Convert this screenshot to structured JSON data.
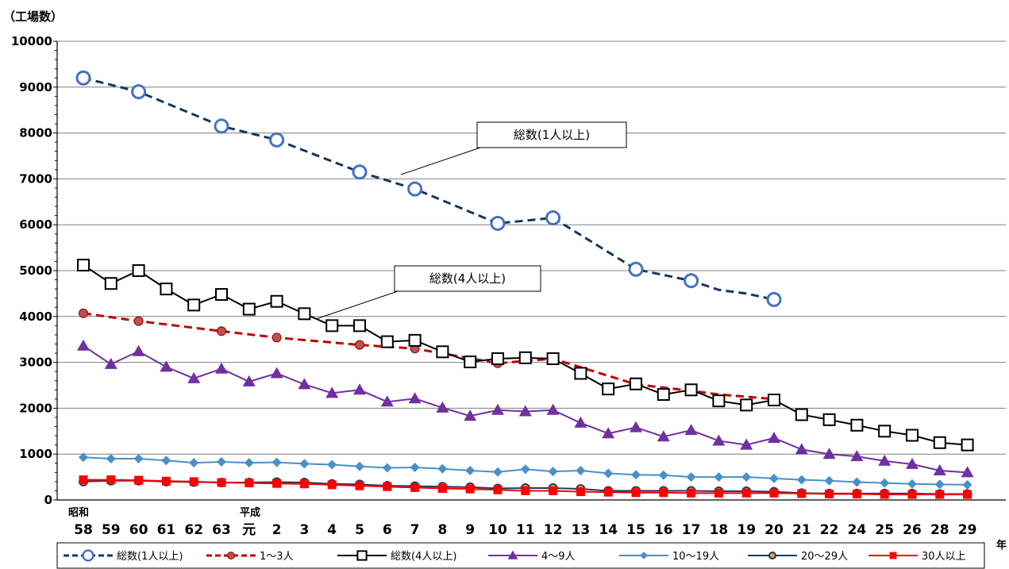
{
  "chart_data": {
    "type": "line",
    "ylabel": "（工場数）",
    "x_unit": "年",
    "era_labels": {
      "showa": "昭和",
      "heisei": "平成"
    },
    "ylim": [
      0,
      10000
    ],
    "yticks": [
      0,
      1000,
      2000,
      3000,
      4000,
      5000,
      6000,
      7000,
      8000,
      9000,
      10000
    ],
    "grid": true,
    "legend_position": "bottom",
    "categories": [
      "58",
      "59",
      "60",
      "61",
      "62",
      "63",
      "元",
      "2",
      "3",
      "4",
      "5",
      "6",
      "7",
      "8",
      "9",
      "10",
      "11",
      "12",
      "13",
      "14",
      "15",
      "16",
      "17",
      "18",
      "19",
      "20",
      "21",
      "22",
      "24",
      "25",
      "26",
      "28",
      "29"
    ],
    "series": [
      {
        "name": "総数(1人以上)",
        "color": "#17365D",
        "dash": "dashed",
        "marker": "open-circle",
        "values": [
          9200,
          null,
          8900,
          null,
          null,
          8150,
          null,
          7850,
          null,
          null,
          7150,
          null,
          6780,
          null,
          null,
          6030,
          null,
          6150,
          null,
          null,
          5030,
          null,
          4780,
          4580,
          4500,
          4370,
          null,
          null,
          null,
          null,
          null,
          null,
          null
        ],
        "marker_points": [
          0,
          2,
          5,
          7,
          10,
          12,
          15,
          17,
          20,
          22,
          25
        ]
      },
      {
        "name": "1〜3人",
        "color": "#C00000",
        "dash": "dashed",
        "marker": "circle",
        "values": [
          4070,
          null,
          3900,
          null,
          null,
          3680,
          null,
          3540,
          null,
          null,
          3380,
          null,
          3300,
          null,
          null,
          2980,
          null,
          3080,
          null,
          null,
          2520,
          null,
          2380,
          2300,
          2250,
          2200,
          null,
          null,
          null,
          null,
          null,
          null,
          null
        ],
        "marker_points": [
          0,
          2,
          5,
          7,
          10,
          12,
          15,
          17,
          20,
          22,
          25
        ]
      },
      {
        "name": "総数(4人以上)",
        "color": "#000000",
        "dash": "solid",
        "marker": "open-square",
        "values": [
          5120,
          4720,
          5000,
          4600,
          4250,
          4480,
          4160,
          4330,
          4060,
          3800,
          3800,
          3450,
          3480,
          3230,
          3010,
          3080,
          3100,
          3080,
          2760,
          2420,
          2530,
          2300,
          2400,
          2160,
          2070,
          2180,
          1860,
          1750,
          1630,
          1500,
          1410,
          1250,
          1200
        ]
      },
      {
        "name": "4〜9人",
        "color": "#7030A0",
        "dash": "solid",
        "marker": "triangle",
        "values": [
          3360,
          2960,
          3240,
          2900,
          2650,
          2860,
          2580,
          2760,
          2520,
          2330,
          2400,
          2140,
          2210,
          2010,
          1830,
          1960,
          1930,
          1960,
          1680,
          1450,
          1580,
          1380,
          1520,
          1290,
          1200,
          1350,
          1100,
          1000,
          950,
          850,
          780,
          640,
          600
        ]
      },
      {
        "name": "10〜19人",
        "color": "#4A90C8",
        "dash": "solid",
        "marker": "diamond",
        "values": [
          930,
          900,
          900,
          860,
          810,
          830,
          810,
          820,
          790,
          770,
          730,
          700,
          710,
          680,
          640,
          610,
          670,
          620,
          640,
          580,
          550,
          540,
          500,
          500,
          500,
          470,
          440,
          420,
          390,
          370,
          350,
          340,
          330
        ]
      },
      {
        "name": "20〜29人",
        "color": "#1F3864",
        "dash": "solid",
        "marker": "gold-circle",
        "values": [
          400,
          420,
          420,
          400,
          390,
          380,
          380,
          390,
          380,
          350,
          340,
          310,
          300,
          290,
          280,
          250,
          260,
          260,
          240,
          200,
          200,
          200,
          200,
          190,
          190,
          180,
          150,
          140,
          140,
          140,
          140,
          130,
          130
        ]
      },
      {
        "name": "30人以上",
        "color": "#FF0000",
        "dash": "solid",
        "marker": "square",
        "values": [
          440,
          440,
          430,
          410,
          400,
          380,
          370,
          360,
          350,
          330,
          310,
          290,
          270,
          250,
          240,
          220,
          200,
          200,
          180,
          170,
          160,
          160,
          150,
          150,
          150,
          150,
          140,
          130,
          130,
          120,
          120,
          120,
          120
        ]
      }
    ],
    "callouts": [
      {
        "text": "総数(1人以上)",
        "series_index": 0
      },
      {
        "text": "総数(4人以上)",
        "series_index": 2
      }
    ]
  }
}
